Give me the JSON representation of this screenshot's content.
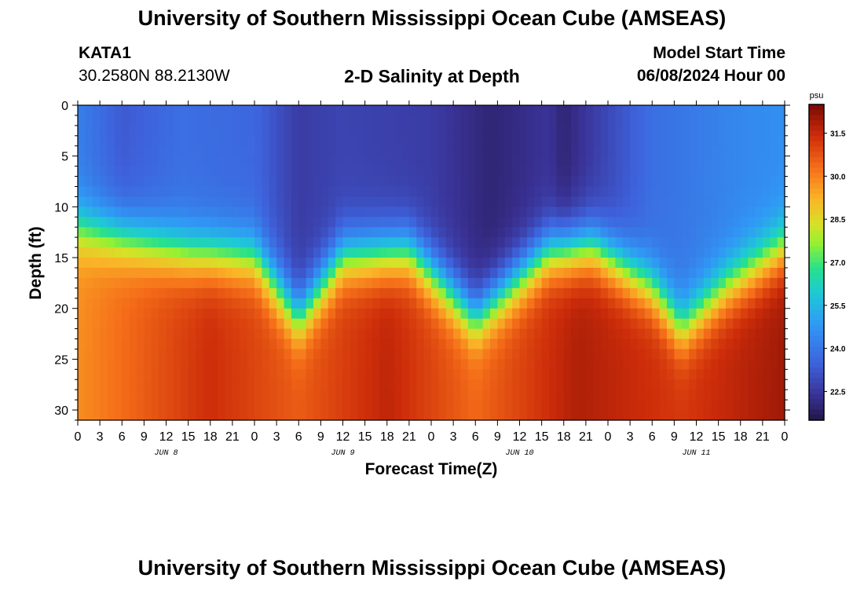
{
  "header": {
    "title": "University of Southern Mississippi Ocean Cube (AMSEAS)",
    "station": "KATA1",
    "coordinates": "30.2580N  88.2130W",
    "subtitle": "2-D Salinity at Depth",
    "model_start_label": "Model Start Time",
    "model_start_value": "06/08/2024 Hour 00"
  },
  "footer": {
    "title": "University of Southern Mississippi Ocean Cube (AMSEAS)"
  },
  "chart_data": {
    "type": "heatmap",
    "title": "2-D Salinity at Depth",
    "xlabel": "Forecast Time(Z)",
    "ylabel": "Depth (ft)",
    "x_hours_range": [
      0,
      96
    ],
    "x_tick_step_hours": 3,
    "x_tick_labels": [
      "0",
      "3",
      "6",
      "9",
      "12",
      "15",
      "18",
      "21",
      "0",
      "3",
      "6",
      "9",
      "12",
      "15",
      "18",
      "21",
      "0",
      "3",
      "6",
      "9",
      "12",
      "15",
      "18",
      "21",
      "0",
      "3",
      "6",
      "9",
      "12",
      "15",
      "18",
      "21",
      "0"
    ],
    "day_labels": [
      {
        "label": "JUN 8",
        "hour": 12
      },
      {
        "label": "JUN 9",
        "hour": 36
      },
      {
        "label": "JUN 10",
        "hour": 60
      },
      {
        "label": "JUN 11",
        "hour": 84
      }
    ],
    "y_range_ft": [
      0,
      31
    ],
    "y_ticks": [
      0,
      5,
      10,
      15,
      20,
      25,
      30
    ],
    "colorbar": {
      "unit": "psu",
      "range": [
        21.5,
        32.5
      ],
      "ticks": [
        "22.5",
        "24.0",
        "25.5",
        "27.0",
        "28.5",
        "30.0",
        "31.5"
      ]
    },
    "halocline_depth_ft": [
      {
        "hour": 0,
        "depth": 12
      },
      {
        "hour": 6,
        "depth": 13
      },
      {
        "hour": 15,
        "depth": 14.5
      },
      {
        "hour": 24,
        "depth": 15
      },
      {
        "hour": 30,
        "depth": 21
      },
      {
        "hour": 36,
        "depth": 15
      },
      {
        "hour": 45,
        "depth": 14.5
      },
      {
        "hour": 54,
        "depth": 21
      },
      {
        "hour": 64,
        "depth": 14.5
      },
      {
        "hour": 70,
        "depth": 14
      },
      {
        "hour": 78,
        "depth": 18
      },
      {
        "hour": 82,
        "depth": 22
      },
      {
        "hour": 88,
        "depth": 18
      },
      {
        "hour": 96,
        "depth": 14
      }
    ],
    "surface_salinity_psu": [
      {
        "hour": 0,
        "value": 24.2
      },
      {
        "hour": 6,
        "value": 23.3
      },
      {
        "hour": 14,
        "value": 23.8
      },
      {
        "hour": 24,
        "value": 23.6
      },
      {
        "hour": 30,
        "value": 22.6
      },
      {
        "hour": 36,
        "value": 22.8
      },
      {
        "hour": 48,
        "value": 22.6
      },
      {
        "hour": 56,
        "value": 22.0
      },
      {
        "hour": 64,
        "value": 22.4
      },
      {
        "hour": 66,
        "value": 22.0
      },
      {
        "hour": 72,
        "value": 22.9
      },
      {
        "hour": 78,
        "value": 23.8
      },
      {
        "hour": 90,
        "value": 24.4
      },
      {
        "hour": 96,
        "value": 24.6
      }
    ],
    "bottom_salinity_psu": [
      {
        "hour": 0,
        "value": 29.8
      },
      {
        "hour": 18,
        "value": 31.4
      },
      {
        "hour": 30,
        "value": 30.6
      },
      {
        "hour": 42,
        "value": 31.6
      },
      {
        "hour": 54,
        "value": 30.4
      },
      {
        "hour": 68,
        "value": 31.8
      },
      {
        "hour": 82,
        "value": 31.2
      },
      {
        "hour": 96,
        "value": 32.0
      }
    ]
  }
}
